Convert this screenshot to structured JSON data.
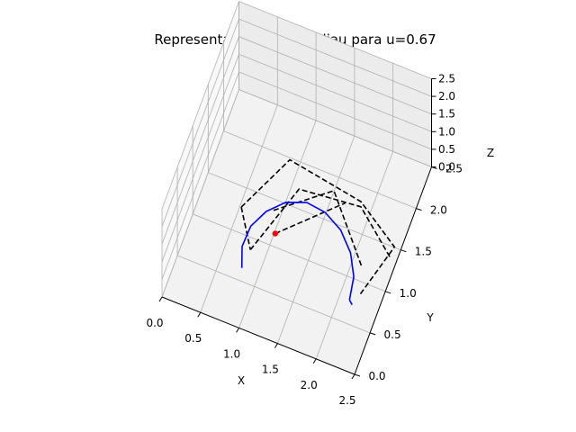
{
  "chart_data": {
    "type": "line3d",
    "title": "Representación de Casteljau para u=0.67",
    "xlabel": "X",
    "ylabel": "Y",
    "zlabel": "Z",
    "xlim": [
      0,
      2.5
    ],
    "ylim": [
      0,
      2.5
    ],
    "zlim": [
      0,
      2.5
    ],
    "xticks": [
      "0.0",
      "0.5",
      "1.0",
      "1.5",
      "2.0",
      "2.5"
    ],
    "yticks": [
      "0.0",
      "0.5",
      "1.0",
      "1.5",
      "2.0",
      "2.5"
    ],
    "zticks": [
      "0.0",
      "0.5",
      "1.0",
      "1.5",
      "2.0",
      "2.5"
    ],
    "grid": true,
    "u": 0.67,
    "colors": {
      "curve": "#0000ff",
      "polygon": "#000000",
      "point": "#ff0000"
    },
    "curve_segments": [
      [
        [
          0.78,
          0.64,
          0.0
        ],
        [
          0.7,
          0.85,
          0.05
        ],
        [
          0.72,
          1.08,
          0.1
        ],
        [
          0.84,
          1.28,
          0.15
        ],
        [
          1.03,
          1.44,
          0.2
        ],
        [
          1.27,
          1.52,
          0.22
        ],
        [
          1.52,
          1.5,
          0.2
        ],
        [
          1.76,
          1.4,
          0.15
        ],
        [
          1.96,
          1.22,
          0.1
        ],
        [
          2.09,
          1.0,
          0.05
        ],
        [
          2.13,
          0.76,
          0.0
        ]
      ],
      [
        [
          2.13,
          0.76,
          0.0
        ],
        [
          2.18,
          0.72,
          0.0
        ]
      ]
    ],
    "polygons": [
      [
        [
          0.63,
          1.0,
          0.75
        ],
        [
          0.98,
          1.7,
          0.75
        ],
        [
          1.95,
          1.58,
          0.7
        ],
        [
          2.49,
          1.32,
          0.5
        ],
        [
          2.22,
          0.84,
          0.0
        ]
      ],
      [
        [
          0.86,
          0.72,
          0.4
        ],
        [
          1.2,
          1.45,
          0.7
        ],
        [
          1.95,
          1.58,
          0.55
        ],
        [
          2.46,
          1.25,
          0.35
        ]
      ],
      [
        [
          1.0,
          1.12,
          0.7
        ],
        [
          1.6,
          1.58,
          0.7
        ],
        [
          2.2,
          1.0,
          0.4
        ]
      ],
      [
        [
          1.05,
          1.05,
          0.25
        ],
        [
          1.78,
          1.5,
          0.7
        ]
      ],
      [
        [
          0.63,
          1.0,
          0.75
        ],
        [
          0.86,
          0.72,
          0.4
        ]
      ]
    ],
    "point": [
      1.05,
      1.05,
      0.25
    ]
  }
}
